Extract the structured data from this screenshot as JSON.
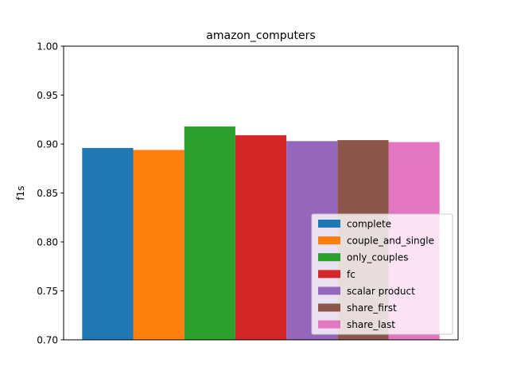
{
  "chart_data": {
    "type": "bar",
    "title": "amazon_computers",
    "xlabel": "",
    "ylabel": "f1s",
    "ylim": [
      0.7,
      1.0
    ],
    "yticks": [
      0.7,
      0.75,
      0.8,
      0.85,
      0.9,
      0.95,
      1.0
    ],
    "ytick_labels": [
      "0.70",
      "0.75",
      "0.80",
      "0.85",
      "0.90",
      "0.95",
      "1.00"
    ],
    "grid": false,
    "legend_position": "lower-right",
    "series": [
      {
        "name": "complete",
        "value": 0.896,
        "color": "#1f77b4"
      },
      {
        "name": "couple_and_single",
        "value": 0.894,
        "color": "#ff7f0e"
      },
      {
        "name": "only_couples",
        "value": 0.918,
        "color": "#2ca02c"
      },
      {
        "name": "fc",
        "value": 0.909,
        "color": "#d62728"
      },
      {
        "name": "scalar product",
        "value": 0.903,
        "color": "#9467bd"
      },
      {
        "name": "share_first",
        "value": 0.904,
        "color": "#8c564b"
      },
      {
        "name": "share_last",
        "value": 0.902,
        "color": "#e377c2"
      }
    ]
  }
}
